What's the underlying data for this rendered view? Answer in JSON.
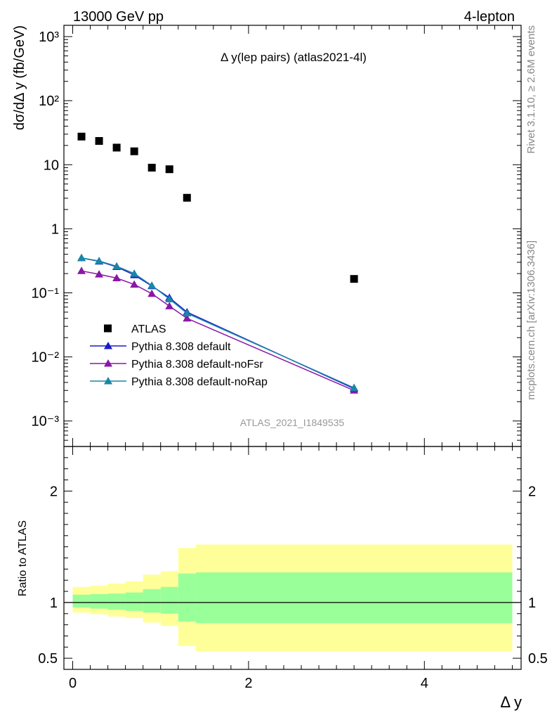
{
  "header": {
    "left": "13000 GeV pp",
    "right": "4-lepton"
  },
  "side": {
    "rivet": "Rivet 3.1.10, ≥ 2.6M events",
    "mcplots": "mcplots.cern.ch [arXiv:1306.3436]"
  },
  "chart_data": [
    {
      "type": "scatter",
      "title": "Δ y(lep pairs) (atlas2021-4l)",
      "ylabel": "dσ/dΔ y (fb/GeV)",
      "xlabel": "Δ y",
      "yscale": "log",
      "xlim": [
        -0.1,
        5.1
      ],
      "ylim": [
        0.0004,
        1500
      ],
      "ytick_labels": [
        "10⁻³",
        "10⁻²",
        "10⁻¹",
        "1",
        "10",
        "10²",
        "10³"
      ],
      "ytick_values": [
        0.001,
        0.01,
        0.1,
        1,
        10,
        100,
        1000
      ],
      "watermark": "ATLAS_2021_I1849535",
      "legend_placement": "lower-left",
      "series": [
        {
          "name": "ATLAS",
          "marker": "square",
          "color": "#000000",
          "x": [
            0.1,
            0.3,
            0.5,
            0.7,
            0.9,
            1.1,
            1.3,
            3.2
          ],
          "y": [
            27.5,
            23.5,
            18.5,
            16.2,
            9.0,
            8.5,
            3.05,
            0.165
          ]
        },
        {
          "name": "Pythia 8.308 default",
          "marker": "triangle",
          "color": "#1a1acc",
          "x": [
            0.1,
            0.3,
            0.5,
            0.7,
            0.9,
            1.1,
            1.3,
            3.2
          ],
          "y": [
            0.35,
            0.31,
            0.255,
            0.19,
            0.128,
            0.084,
            0.05,
            0.0032
          ]
        },
        {
          "name": "Pythia 8.308 default-noFsr",
          "marker": "triangle",
          "color": "#8a17a8",
          "x": [
            0.1,
            0.3,
            0.5,
            0.7,
            0.9,
            1.1,
            1.3,
            3.2
          ],
          "y": [
            0.22,
            0.195,
            0.17,
            0.135,
            0.097,
            0.062,
            0.04,
            0.003
          ]
        },
        {
          "name": "Pythia 8.308 default-noRap",
          "marker": "triangle",
          "color": "#1a86a8",
          "x": [
            0.1,
            0.3,
            0.5,
            0.7,
            0.9,
            1.1,
            1.3,
            3.2
          ],
          "y": [
            0.35,
            0.315,
            0.26,
            0.2,
            0.13,
            0.08,
            0.048,
            0.0033
          ]
        }
      ]
    },
    {
      "type": "area",
      "ylabel": "Ratio to ATLAS",
      "xlabel": "Δ y",
      "xlim": [
        -0.1,
        5.1
      ],
      "ylim": [
        0.4,
        2.4
      ],
      "ytick_labels": [
        "0.5",
        "1",
        "2"
      ],
      "ytick_values": [
        0.5,
        1,
        2
      ],
      "xtick_labels": [
        "0",
        "2",
        "4"
      ],
      "xtick_values": [
        0,
        2,
        4
      ],
      "bins": [
        0,
        0.2,
        0.4,
        0.6,
        0.8,
        1.0,
        1.2,
        1.4,
        5.0
      ],
      "band_outer": {
        "color": "#ffff99",
        "lo": [
          0.91,
          0.895,
          0.875,
          0.86,
          0.82,
          0.79,
          0.61,
          0.56
        ],
        "hi": [
          1.14,
          1.15,
          1.17,
          1.19,
          1.25,
          1.28,
          1.49,
          1.52
        ]
      },
      "band_inner": {
        "color": "#99ff99",
        "lo": [
          0.955,
          0.945,
          0.935,
          0.925,
          0.91,
          0.9,
          0.83,
          0.815
        ],
        "hi": [
          1.07,
          1.075,
          1.08,
          1.09,
          1.12,
          1.14,
          1.26,
          1.27
        ]
      },
      "reference_line": 1
    }
  ]
}
